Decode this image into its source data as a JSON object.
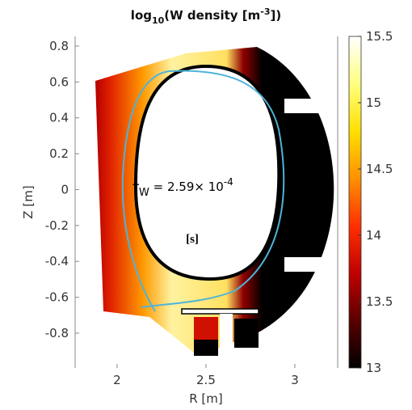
{
  "chart_data": {
    "type": "heatmap",
    "title": [
      "log",
      "10",
      "(W density [m",
      "-3",
      "])"
    ],
    "xlabel": "R [m]",
    "ylabel": "Z [m]",
    "xlim": [
      1.764,
      3.241
    ],
    "ylim": [
      -0.994,
      0.854
    ],
    "xticks": [
      2,
      2.5,
      3
    ],
    "yticks": [
      -0.8,
      -0.6,
      -0.4,
      -0.2,
      0,
      0.2,
      0.4,
      0.6,
      0.8
    ],
    "colorbar": {
      "lim": [
        13,
        15.5
      ],
      "ticks": [
        13,
        13.5,
        14,
        14.5,
        15,
        15.5
      ],
      "colormap": "hot"
    },
    "annotations": [
      [
        "τ",
        "W",
        " = 2.59× 10",
        "-4"
      ],
      "[s]"
    ]
  }
}
